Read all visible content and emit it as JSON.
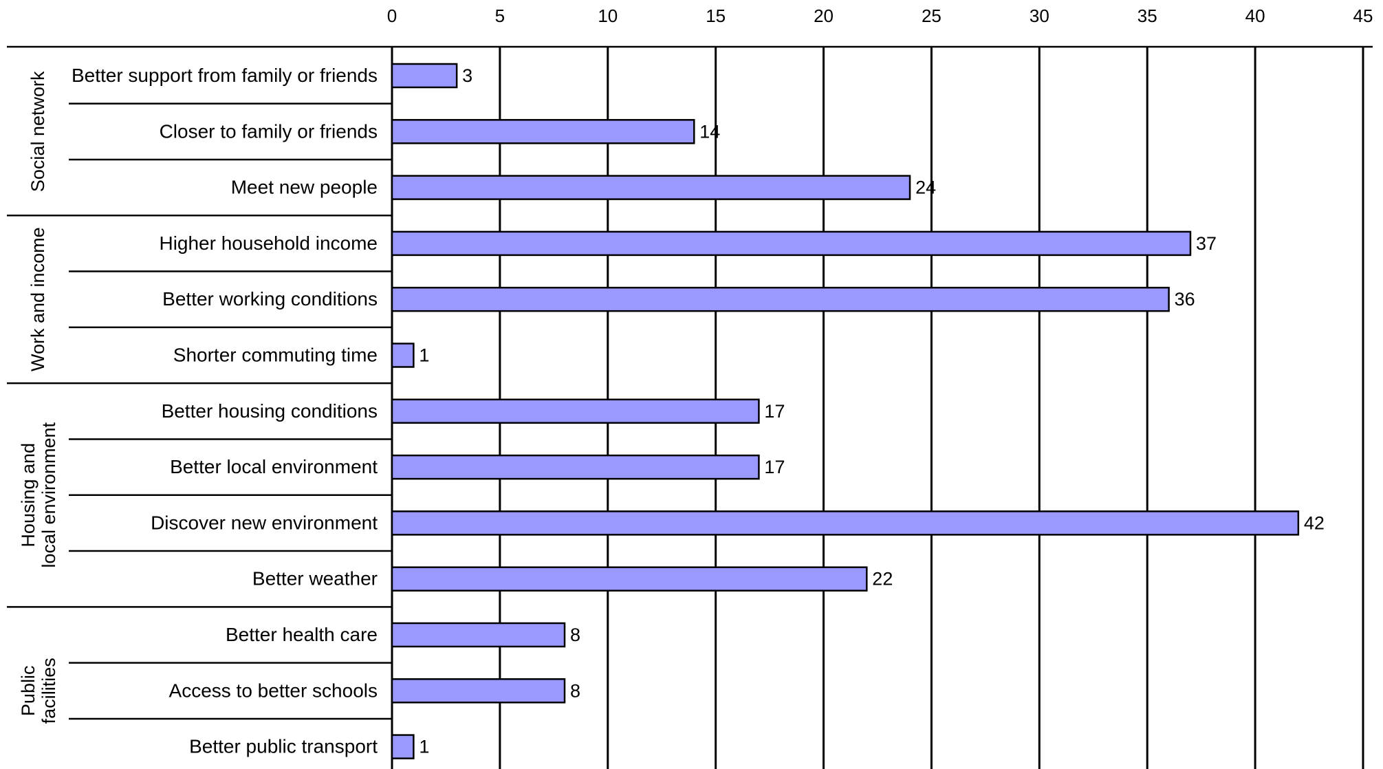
{
  "chart_data": {
    "type": "bar",
    "orientation": "horizontal",
    "xlim": [
      0,
      45
    ],
    "x_ticks": [
      "0",
      "5",
      "10",
      "15",
      "20",
      "25",
      "30",
      "35",
      "40",
      "45"
    ],
    "grid": true,
    "bar_color": "#9999ff",
    "groups": [
      {
        "name": "Social network",
        "categories": [
          "Better support from family or friends",
          "Closer to family or friends",
          "Meet new people"
        ],
        "values": [
          3,
          14,
          24
        ]
      },
      {
        "name": "Work and income",
        "categories": [
          "Higher household income",
          "Better working conditions",
          "Shorter commuting time"
        ],
        "values": [
          37,
          36,
          1
        ]
      },
      {
        "name": "Housing and local environment",
        "categories": [
          "Better housing conditions",
          "Better local environment",
          "Discover new environment",
          "Better weather"
        ],
        "values": [
          17,
          17,
          42,
          22
        ]
      },
      {
        "name": "Public facilities",
        "categories": [
          "Better health care",
          "Access to better schools",
          "Better public transport"
        ],
        "values": [
          8,
          8,
          1
        ]
      }
    ]
  }
}
